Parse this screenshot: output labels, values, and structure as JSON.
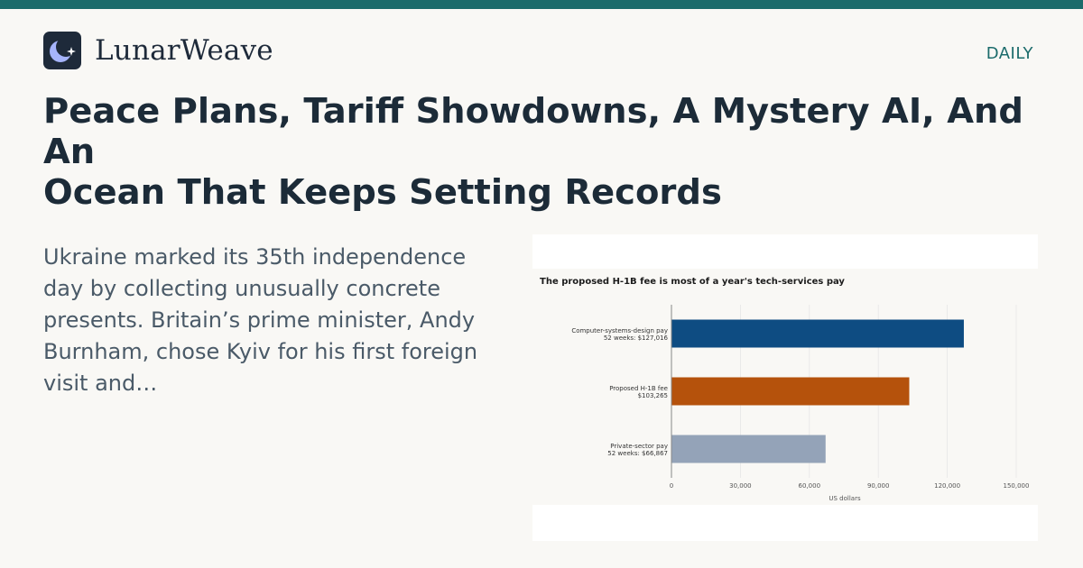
{
  "brand": {
    "name": "LunarWeave",
    "logo_icon": "moon-star-icon"
  },
  "edition": "DAILY",
  "headline": "Peace Plans, Tariff Showdowns, A Mystery AI, And An\nOcean That Keeps Setting Records",
  "summary": "Ukraine marked its 35th independence day by collecting unusually concrete presents. Britain’s prime minister, Andy Burnham, chose Kyiv for his first foreign visit and…",
  "colors": {
    "accent": "#1b6b6b",
    "bar_computer": "#0e4c82",
    "bar_fee": "#b5520c",
    "bar_private": "#94a3b8"
  },
  "chart_data": {
    "type": "bar",
    "orientation": "horizontal",
    "title": "The proposed H-1B fee is most of a year's tech-services pay",
    "xlabel": "US dollars",
    "ylabel": "",
    "xlim": [
      0,
      150000
    ],
    "xticks": [
      0,
      30000,
      60000,
      90000,
      120000,
      150000
    ],
    "xtick_labels": [
      "0",
      "30,000",
      "60,000",
      "90,000",
      "120,000",
      "150,000"
    ],
    "grid": true,
    "categories": [
      {
        "line1": "Computer-systems-design pay",
        "line2": "52 weeks: $127,016",
        "value": 127016,
        "color": "#0e4c82"
      },
      {
        "line1": "Proposed H-1B fee",
        "line2": "$103,265",
        "value": 103265,
        "color": "#b5520c"
      },
      {
        "line1": "Private-sector pay",
        "line2": "52 weeks: $66,867",
        "value": 66867,
        "color": "#94a3b8"
      }
    ]
  }
}
